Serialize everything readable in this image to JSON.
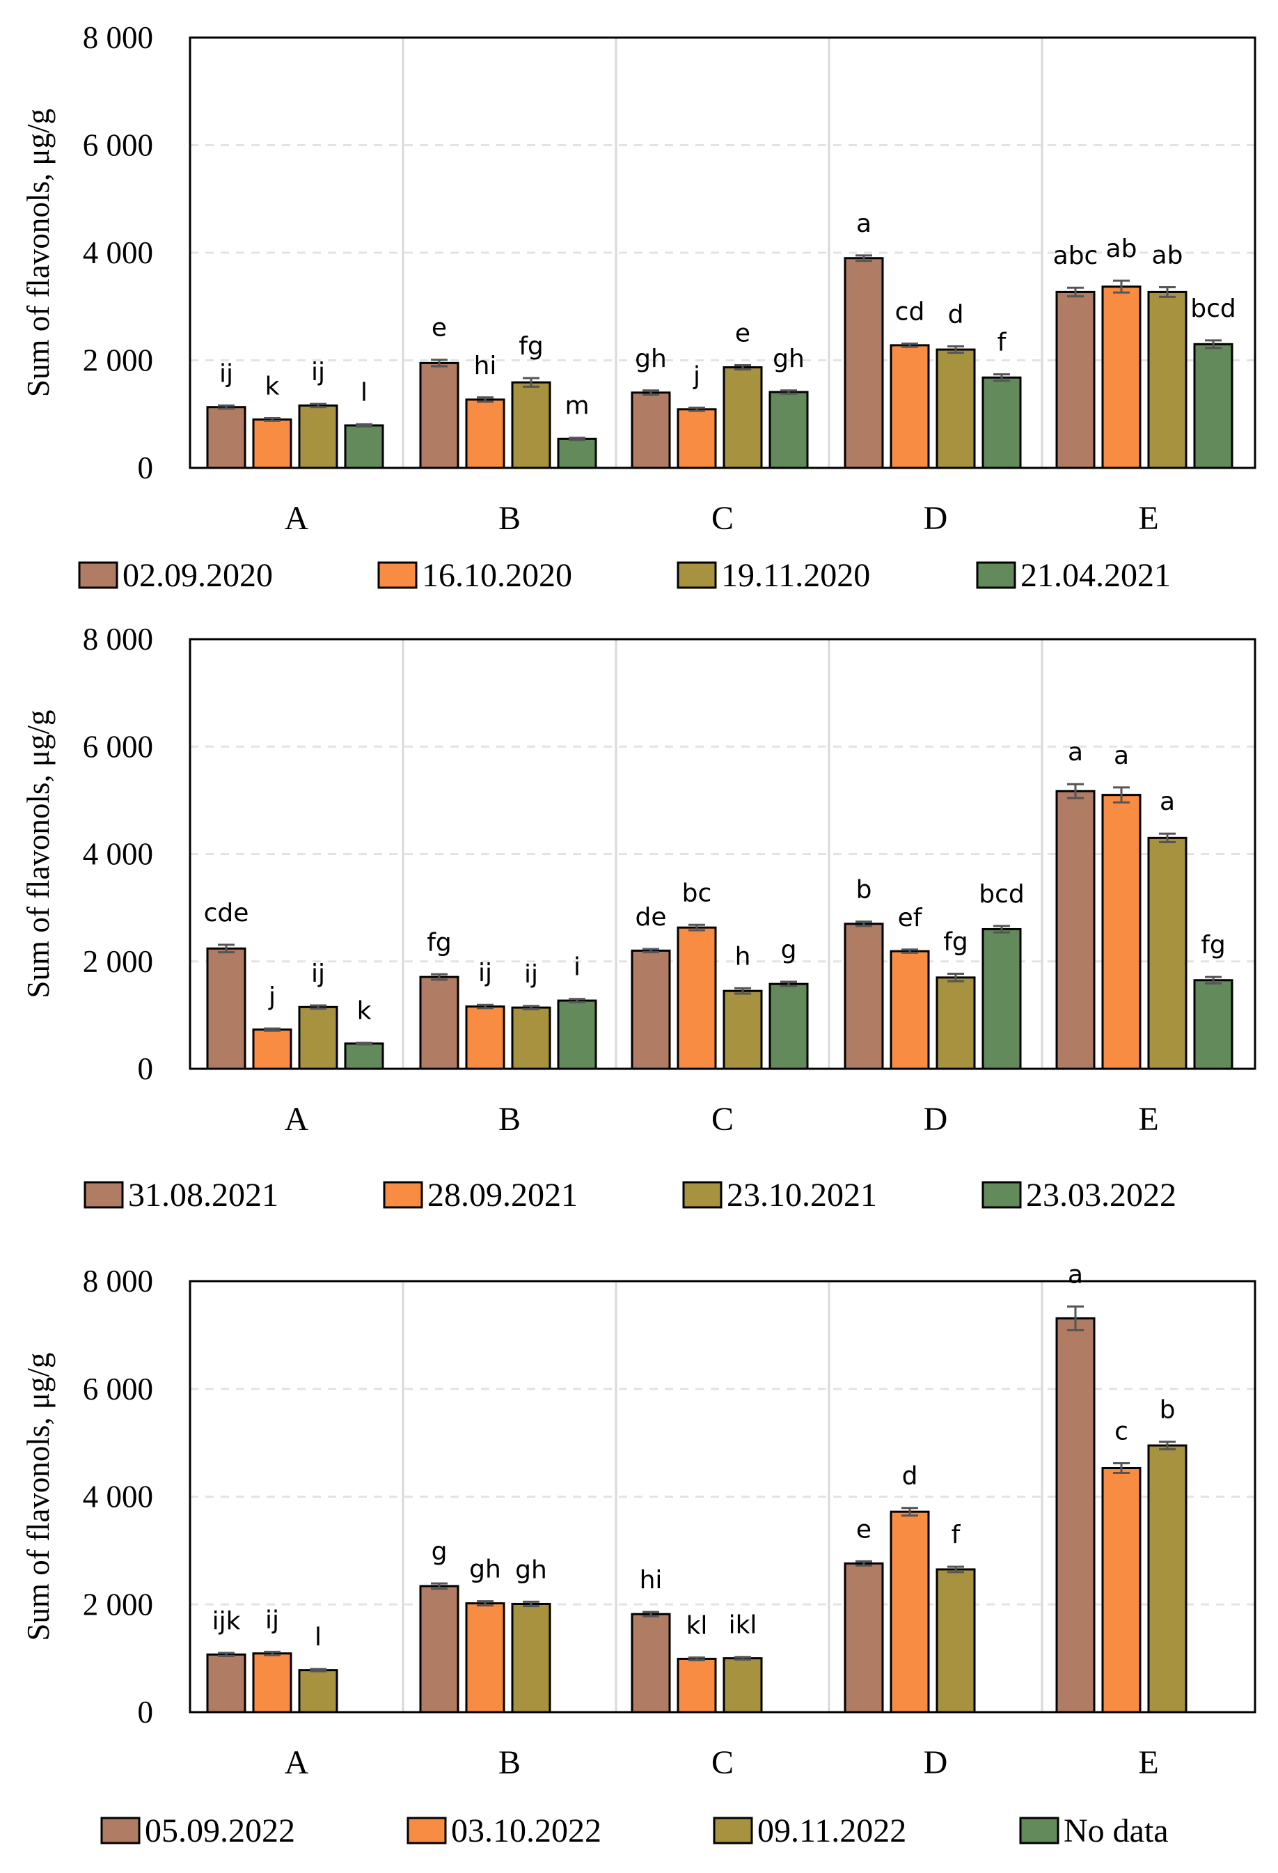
{
  "chart_data": [
    {
      "type": "bar",
      "ylabel": "Sum of flavonols, μg/g",
      "ylim": [
        0,
        8000
      ],
      "yticks": [
        0,
        2000,
        4000,
        6000,
        8000
      ],
      "ytick_labels": [
        "0",
        "2 000",
        "4 000",
        "6 000",
        "8 000"
      ],
      "grid": true,
      "categories": [
        "A",
        "B",
        "C",
        "D",
        "E"
      ],
      "legend_position": "bottom",
      "series": [
        {
          "name": "02.09.2020",
          "color": "#b07c63",
          "values": [
            1130,
            1950,
            1400,
            3900,
            3270
          ],
          "errors": [
            30,
            60,
            40,
            50,
            80
          ],
          "letters": [
            "ij",
            "e",
            "gh",
            "a",
            "abc"
          ]
        },
        {
          "name": "16.10.2020",
          "color": "#f98c43",
          "values": [
            900,
            1270,
            1090,
            2280,
            3370
          ],
          "errors": [
            25,
            40,
            30,
            30,
            110
          ],
          "letters": [
            "k",
            "hi",
            "j",
            "cd",
            "ab"
          ]
        },
        {
          "name": "19.11.2020",
          "color": "#a6923f",
          "values": [
            1160,
            1590,
            1870,
            2200,
            3270
          ],
          "errors": [
            30,
            80,
            40,
            60,
            90
          ],
          "letters": [
            "ij",
            "fg",
            "e",
            "d",
            "ab"
          ]
        },
        {
          "name": "21.04.2021",
          "color": "#638a5b",
          "values": [
            790,
            540,
            1410,
            1680,
            2300
          ],
          "errors": [
            20,
            20,
            30,
            60,
            70
          ],
          "letters": [
            "l",
            "m",
            "gh",
            "f",
            "bcd"
          ]
        }
      ]
    },
    {
      "type": "bar",
      "ylabel": "Sum of flavonols, μg/g",
      "ylim": [
        0,
        8000
      ],
      "yticks": [
        0,
        2000,
        4000,
        6000,
        8000
      ],
      "ytick_labels": [
        "0",
        "2 000",
        "4 000",
        "6 000",
        "8 000"
      ],
      "grid": true,
      "categories": [
        "A",
        "B",
        "C",
        "D",
        "E"
      ],
      "legend_position": "bottom",
      "series": [
        {
          "name": "31.08.2021",
          "color": "#b07c63",
          "values": [
            2240,
            1710,
            2200,
            2700,
            5170
          ],
          "errors": [
            70,
            50,
            30,
            40,
            130
          ],
          "letters": [
            "cde",
            "fg",
            "de",
            "b",
            "a"
          ]
        },
        {
          "name": "28.09.2021",
          "color": "#f98c43",
          "values": [
            730,
            1160,
            2630,
            2190,
            5100
          ],
          "errors": [
            20,
            30,
            50,
            30,
            140
          ],
          "letters": [
            "j",
            "ij",
            "bc",
            "ef",
            "a"
          ]
        },
        {
          "name": "23.10.2021",
          "color": "#a6923f",
          "values": [
            1150,
            1140,
            1450,
            1700,
            4300
          ],
          "errors": [
            30,
            30,
            50,
            70,
            80
          ],
          "letters": [
            "ij",
            "ij",
            "h",
            "fg",
            "a"
          ]
        },
        {
          "name": "23.03.2022",
          "color": "#638a5b",
          "values": [
            470,
            1270,
            1580,
            2600,
            1650
          ],
          "errors": [
            15,
            30,
            40,
            60,
            60
          ],
          "letters": [
            "k",
            "i",
            "g",
            "bcd",
            "fg"
          ]
        }
      ]
    },
    {
      "type": "bar",
      "ylabel": "Sum of flavonols, μg/g",
      "ylim": [
        0,
        8000
      ],
      "yticks": [
        0,
        2000,
        4000,
        6000,
        8000
      ],
      "ytick_labels": [
        "0",
        "2 000",
        "4 000",
        "6 000",
        "8 000"
      ],
      "grid": true,
      "categories": [
        "A",
        "B",
        "C",
        "D",
        "E"
      ],
      "legend_position": "bottom",
      "series": [
        {
          "name": "05.09.2022",
          "color": "#b07c63",
          "values": [
            1070,
            2340,
            1820,
            2760,
            7310
          ],
          "errors": [
            30,
            50,
            40,
            40,
            220
          ],
          "letters": [
            "ijk",
            "g",
            "hi",
            "e",
            "a"
          ]
        },
        {
          "name": "03.10.2022",
          "color": "#f98c43",
          "values": [
            1090,
            2020,
            990,
            3720,
            4530
          ],
          "errors": [
            30,
            40,
            25,
            70,
            90
          ],
          "letters": [
            "ij",
            "gh",
            "kl",
            "d",
            "c"
          ]
        },
        {
          "name": "09.11.2022",
          "color": "#a6923f",
          "values": [
            780,
            2010,
            1000,
            2650,
            4950
          ],
          "errors": [
            20,
            40,
            25,
            50,
            70
          ],
          "letters": [
            "l",
            "gh",
            "ikl",
            "f",
            "b"
          ]
        },
        {
          "name": "No data",
          "color": "#638a5b",
          "values": [
            null,
            null,
            null,
            null,
            null
          ],
          "errors": [
            null,
            null,
            null,
            null,
            null
          ],
          "letters": [
            "",
            "",
            "",
            "",
            ""
          ]
        }
      ]
    }
  ]
}
